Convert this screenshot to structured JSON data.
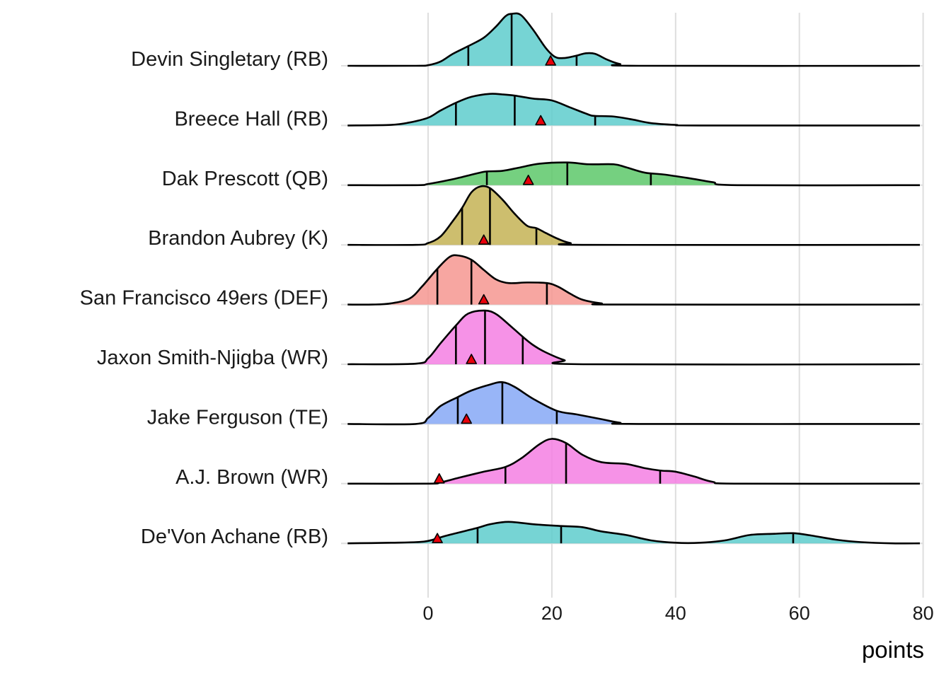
{
  "chart_data": {
    "type": "ridgeline",
    "xlabel": "points",
    "xlim": [
      -13,
      80
    ],
    "xticks": [
      0,
      20,
      40,
      60,
      80
    ],
    "xtick_labels": [
      "0",
      "20",
      "40",
      "60",
      "80"
    ],
    "grid": true,
    "marker": "red triangle",
    "series": [
      {
        "name": "Devin Singletary (RB)",
        "color": "#5ECCCC",
        "quantiles": [
          6.5,
          13.5,
          24
        ],
        "marker_x": 19.8,
        "density": [
          [
            -13,
            0
          ],
          [
            -2,
            0
          ],
          [
            0,
            0.01
          ],
          [
            2,
            0.07
          ],
          [
            4,
            0.2
          ],
          [
            6.5,
            0.33
          ],
          [
            9,
            0.47
          ],
          [
            11,
            0.66
          ],
          [
            12.5,
            0.83
          ],
          [
            13.5,
            0.87
          ],
          [
            15,
            0.85
          ],
          [
            17,
            0.6
          ],
          [
            19,
            0.3
          ],
          [
            20.5,
            0.15
          ],
          [
            22,
            0.13
          ],
          [
            24,
            0.17
          ],
          [
            25.5,
            0.21
          ],
          [
            27,
            0.2
          ],
          [
            29,
            0.1
          ],
          [
            31,
            0.03
          ],
          [
            34,
            0
          ],
          [
            80,
            0
          ]
        ]
      },
      {
        "name": "Breece Hall (RB)",
        "color": "#5ECCCC",
        "quantiles": [
          4.5,
          14,
          27
        ],
        "marker_x": 18.2,
        "density": [
          [
            -13,
            0
          ],
          [
            -6,
            0.01
          ],
          [
            -3,
            0.05
          ],
          [
            0,
            0.13
          ],
          [
            2,
            0.25
          ],
          [
            4.5,
            0.38
          ],
          [
            7,
            0.48
          ],
          [
            10,
            0.53
          ],
          [
            12,
            0.52
          ],
          [
            14,
            0.5
          ],
          [
            17,
            0.45
          ],
          [
            20,
            0.42
          ],
          [
            23,
            0.3
          ],
          [
            26,
            0.18
          ],
          [
            27,
            0.16
          ],
          [
            30,
            0.15
          ],
          [
            33,
            0.1
          ],
          [
            36,
            0.04
          ],
          [
            40,
            0.01
          ],
          [
            44,
            0
          ],
          [
            80,
            0
          ]
        ]
      },
      {
        "name": "Dak Prescott (QB)",
        "color": "#5DC86A",
        "quantiles": [
          9.5,
          22.5,
          36
        ],
        "marker_x": 16.2,
        "density": [
          [
            -13,
            0
          ],
          [
            -2,
            0
          ],
          [
            0,
            0.02
          ],
          [
            4,
            0.1
          ],
          [
            8,
            0.2
          ],
          [
            9.5,
            0.23
          ],
          [
            12,
            0.24
          ],
          [
            15,
            0.3
          ],
          [
            18,
            0.36
          ],
          [
            22.5,
            0.38
          ],
          [
            26,
            0.35
          ],
          [
            30,
            0.35
          ],
          [
            32,
            0.3
          ],
          [
            35,
            0.21
          ],
          [
            38,
            0.18
          ],
          [
            42,
            0.12
          ],
          [
            46,
            0.05
          ],
          [
            50,
            0
          ],
          [
            80,
            0
          ]
        ]
      },
      {
        "name": "Brandon Aubrey (K)",
        "color": "#C4B355",
        "quantiles": [
          5.5,
          10,
          17.5
        ],
        "marker_x": 9,
        "density": [
          [
            -13,
            0
          ],
          [
            -2,
            0
          ],
          [
            0,
            0.03
          ],
          [
            2,
            0.14
          ],
          [
            4,
            0.4
          ],
          [
            5.5,
            0.62
          ],
          [
            7,
            0.88
          ],
          [
            8.5,
            0.98
          ],
          [
            10,
            0.95
          ],
          [
            12,
            0.76
          ],
          [
            14,
            0.52
          ],
          [
            16,
            0.32
          ],
          [
            17.5,
            0.28
          ],
          [
            19,
            0.2
          ],
          [
            21,
            0.1
          ],
          [
            23,
            0.03
          ],
          [
            26,
            0
          ],
          [
            80,
            0
          ]
        ]
      },
      {
        "name": "San Francisco 49ers (DEF)",
        "color": "#F69691",
        "quantiles": [
          1.5,
          7,
          19.2
        ],
        "marker_x": 9,
        "density": [
          [
            -13,
            0
          ],
          [
            -9,
            0
          ],
          [
            -6,
            0.02
          ],
          [
            -3,
            0.1
          ],
          [
            -1,
            0.3
          ],
          [
            1.5,
            0.6
          ],
          [
            3.5,
            0.8
          ],
          [
            5,
            0.82
          ],
          [
            7,
            0.75
          ],
          [
            9,
            0.58
          ],
          [
            11,
            0.42
          ],
          [
            13,
            0.36
          ],
          [
            16,
            0.37
          ],
          [
            19.2,
            0.36
          ],
          [
            21,
            0.3
          ],
          [
            23,
            0.18
          ],
          [
            25,
            0.08
          ],
          [
            28,
            0.02
          ],
          [
            31,
            0
          ],
          [
            80,
            0
          ]
        ]
      },
      {
        "name": "Jaxon Smith-Njigba (WR)",
        "color": "#F47FE3",
        "quantiles": [
          4.5,
          9.2,
          15.3
        ],
        "marker_x": 7,
        "density": [
          [
            -13,
            0
          ],
          [
            -2,
            0.01
          ],
          [
            0,
            0.1
          ],
          [
            2,
            0.35
          ],
          [
            4.5,
            0.65
          ],
          [
            6.5,
            0.85
          ],
          [
            9.2,
            0.9
          ],
          [
            11,
            0.84
          ],
          [
            13,
            0.67
          ],
          [
            15.3,
            0.46
          ],
          [
            17,
            0.32
          ],
          [
            19,
            0.2
          ],
          [
            22,
            0.07
          ],
          [
            25,
            0
          ],
          [
            80,
            0
          ]
        ]
      },
      {
        "name": "Jake Ferguson (TE)",
        "color": "#86A8F6",
        "quantiles": [
          4.8,
          12,
          20.8
        ],
        "marker_x": 6.2,
        "density": [
          [
            -13,
            0
          ],
          [
            -2,
            0
          ],
          [
            0,
            0.1
          ],
          [
            2,
            0.3
          ],
          [
            4.8,
            0.45
          ],
          [
            7,
            0.56
          ],
          [
            10,
            0.66
          ],
          [
            12,
            0.7
          ],
          [
            14,
            0.62
          ],
          [
            17,
            0.42
          ],
          [
            20.8,
            0.22
          ],
          [
            24,
            0.16
          ],
          [
            28,
            0.08
          ],
          [
            31,
            0.02
          ],
          [
            34,
            0
          ],
          [
            80,
            0
          ]
        ]
      },
      {
        "name": "A.J. Brown (WR)",
        "color": "#F47FE3",
        "quantiles": [
          12.5,
          22.3,
          37.5
        ],
        "marker_x": 1.8,
        "density": [
          [
            -13,
            0
          ],
          [
            0,
            0
          ],
          [
            2,
            0.02
          ],
          [
            5,
            0.1
          ],
          [
            9,
            0.2
          ],
          [
            12.5,
            0.28
          ],
          [
            15,
            0.42
          ],
          [
            18,
            0.66
          ],
          [
            20,
            0.75
          ],
          [
            22.3,
            0.68
          ],
          [
            25,
            0.48
          ],
          [
            28,
            0.36
          ],
          [
            32,
            0.33
          ],
          [
            35,
            0.26
          ],
          [
            37.5,
            0.22
          ],
          [
            40,
            0.2
          ],
          [
            43,
            0.12
          ],
          [
            46,
            0.03
          ],
          [
            50,
            0
          ],
          [
            80,
            0
          ]
        ]
      },
      {
        "name": "De'Von Achane (RB)",
        "color": "#5ECCCC",
        "quantiles": [
          8,
          21.5,
          59
        ],
        "marker_x": 1.5,
        "density": [
          [
            -13,
            0
          ],
          [
            -6,
            0.01
          ],
          [
            -2,
            0.02
          ],
          [
            0,
            0.04
          ],
          [
            3,
            0.13
          ],
          [
            8,
            0.26
          ],
          [
            10,
            0.32
          ],
          [
            13,
            0.36
          ],
          [
            17,
            0.32
          ],
          [
            21.5,
            0.29
          ],
          [
            25,
            0.27
          ],
          [
            28,
            0.2
          ],
          [
            32,
            0.14
          ],
          [
            36,
            0.05
          ],
          [
            40,
            0.01
          ],
          [
            44,
            0.01
          ],
          [
            48,
            0.05
          ],
          [
            52,
            0.14
          ],
          [
            56,
            0.16
          ],
          [
            59,
            0.17
          ],
          [
            62,
            0.13
          ],
          [
            66,
            0.06
          ],
          [
            70,
            0.02
          ],
          [
            75,
            0
          ],
          [
            80,
            0
          ]
        ]
      }
    ]
  }
}
